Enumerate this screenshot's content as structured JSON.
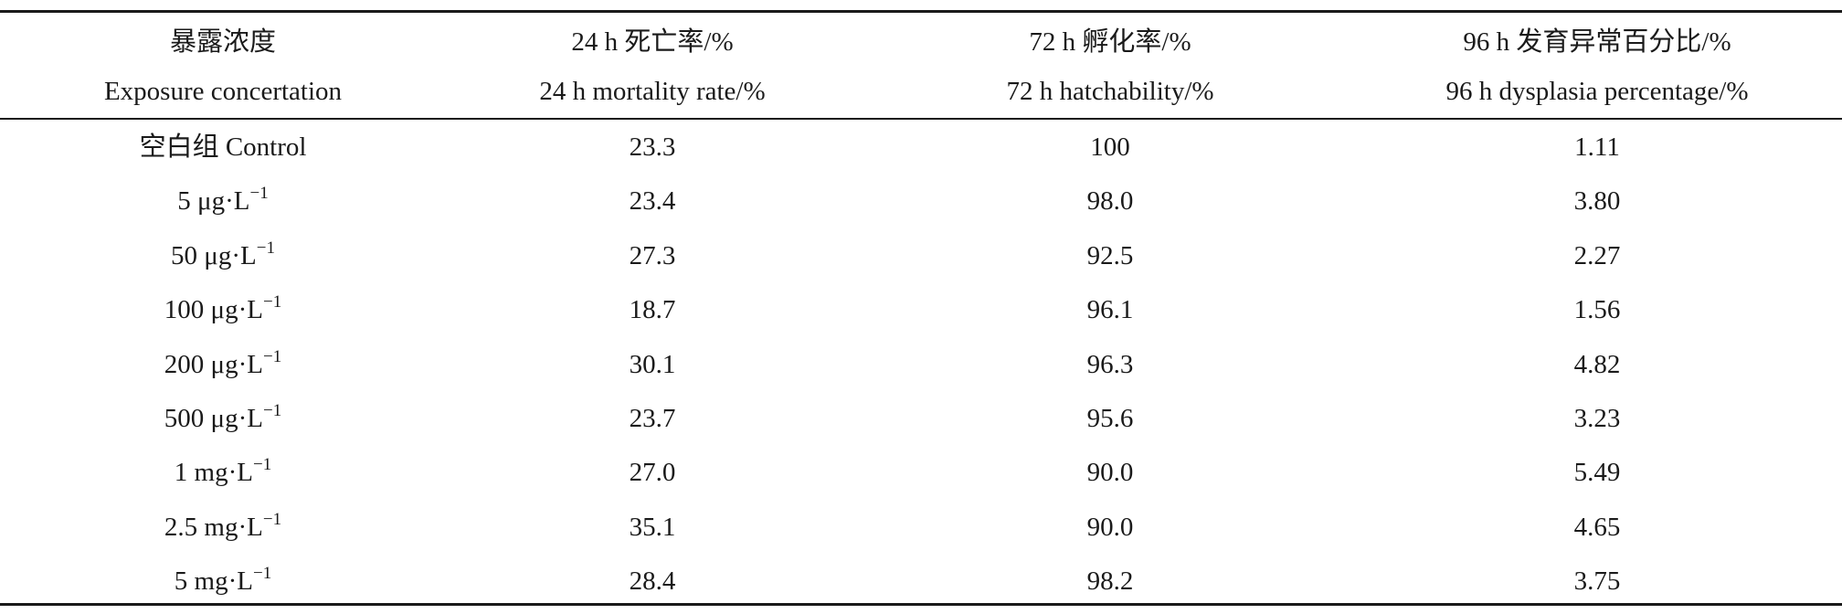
{
  "table": {
    "headers": [
      {
        "zh": "暴露浓度",
        "en": "Exposure concertation"
      },
      {
        "zh": "24 h 死亡率/%",
        "en": "24 h mortality rate/%"
      },
      {
        "zh": "72 h 孵化率/%",
        "en": "72 h hatchability/%"
      },
      {
        "zh": "96 h 发育异常百分比/%",
        "en": "96 h dysplasia percentage/%"
      }
    ],
    "rows": [
      {
        "conc": "空白组 Control",
        "mortality": "23.3",
        "hatchability": "100",
        "dysplasia": "1.11"
      },
      {
        "conc": "5 μg·L",
        "exp": "−1",
        "mortality": "23.4",
        "hatchability": "98.0",
        "dysplasia": "3.80"
      },
      {
        "conc": "50 μg·L",
        "exp": "−1",
        "mortality": "27.3",
        "hatchability": "92.5",
        "dysplasia": "2.27"
      },
      {
        "conc": "100 μg·L",
        "exp": "−1",
        "mortality": "18.7",
        "hatchability": "96.1",
        "dysplasia": "1.56"
      },
      {
        "conc": "200 μg·L",
        "exp": "−1",
        "mortality": "30.1",
        "hatchability": "96.3",
        "dysplasia": "4.82"
      },
      {
        "conc": "500 μg·L",
        "exp": "−1",
        "mortality": "23.7",
        "hatchability": "95.6",
        "dysplasia": "3.23"
      },
      {
        "conc": "1 mg·L",
        "exp": "−1",
        "mortality": "27.0",
        "hatchability": "90.0",
        "dysplasia": "5.49"
      },
      {
        "conc": "2.5 mg·L",
        "exp": "−1",
        "mortality": "35.1",
        "hatchability": "90.0",
        "dysplasia": "4.65"
      },
      {
        "conc": "5 mg·L",
        "exp": "−1",
        "mortality": "28.4",
        "hatchability": "98.2",
        "dysplasia": "3.75"
      }
    ]
  }
}
